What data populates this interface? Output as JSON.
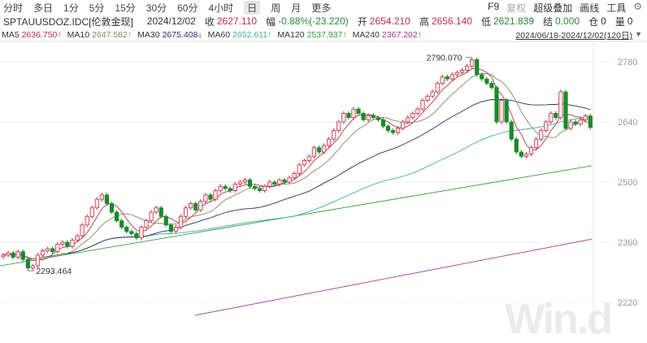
{
  "toolbar": {
    "periods": [
      "分时",
      "多日",
      "1分",
      "5分",
      "15分",
      "30分",
      "60分",
      "4小时",
      "日",
      "周",
      "月",
      "更多"
    ],
    "selected": "日",
    "right": [
      "F9",
      "复权",
      "超级叠加",
      "画线",
      "工具"
    ],
    "gear_icon": "gear-icon"
  },
  "quote": {
    "symbol": "SPTAUUSDOZ.IDC[伦敦金现]",
    "date": "2024/12/02",
    "close_label": "收",
    "close": "2627.110",
    "chg_label": "幅",
    "chg": "-0.88%(-23.220)",
    "open_label": "开",
    "open": "2654.210",
    "high_label": "高",
    "high": "2656.140",
    "low_label": "低",
    "low": "2621.839",
    "settle_label": "结",
    "settle": "0.000",
    "oi_label": "仓",
    "oi": "0",
    "vol_label": "量",
    "vol": "0"
  },
  "ma": [
    {
      "name": "MA5",
      "value": "2636.750↑",
      "color": "#c0304a"
    },
    {
      "name": "MA10",
      "value": "2647.582↑",
      "color": "#888866"
    },
    {
      "name": "MA30",
      "value": "2675.408↓",
      "color": "#2a2f6a"
    },
    {
      "name": "MA60",
      "value": "2652.611↑",
      "color": "#40b0a0"
    },
    {
      "name": "MA120",
      "value": "2537.937↑",
      "color": "#3a9a40"
    },
    {
      "name": "MA240",
      "value": "2367.202↑",
      "color": "#9a3a9a"
    }
  ],
  "range": "2024/06/18-2024/12/02(120日)",
  "watermark": "Win.d",
  "chart_data": {
    "type": "candlestick",
    "ylim": [
      2180,
      2820
    ],
    "yticks": [
      2220,
      2360,
      2500,
      2640,
      2780
    ],
    "grid": true,
    "annotations": [
      {
        "text": "2790.070",
        "value": 2790.07,
        "index": 95
      },
      {
        "text": "2293.464",
        "value": 2293.464,
        "index": 5
      }
    ],
    "closes": [
      2330,
      2335,
      2325,
      2338,
      2320,
      2300,
      2305,
      2330,
      2340,
      2345,
      2338,
      2355,
      2360,
      2350,
      2365,
      2375,
      2400,
      2420,
      2440,
      2460,
      2470,
      2450,
      2430,
      2410,
      2395,
      2385,
      2380,
      2370,
      2395,
      2410,
      2430,
      2440,
      2420,
      2400,
      2385,
      2395,
      2420,
      2440,
      2450,
      2435,
      2455,
      2470,
      2460,
      2480,
      2490,
      2485,
      2480,
      2495,
      2500,
      2505,
      2490,
      2485,
      2480,
      2490,
      2500,
      2495,
      2505,
      2500,
      2510,
      2520,
      2540,
      2550,
      2560,
      2580,
      2570,
      2585,
      2600,
      2620,
      2640,
      2660,
      2650,
      2670,
      2660,
      2645,
      2655,
      2650,
      2645,
      2630,
      2620,
      2615,
      2625,
      2640,
      2650,
      2660,
      2670,
      2690,
      2700,
      2710,
      2730,
      2745,
      2740,
      2750,
      2755,
      2760,
      2770,
      2785,
      2750,
      2740,
      2730,
      2720,
      2640,
      2690,
      2640,
      2600,
      2570,
      2560,
      2565,
      2580,
      2600,
      2620,
      2640,
      2660,
      2650,
      2710,
      2625,
      2640,
      2635,
      2645,
      2654,
      2627
    ],
    "ma120_range": [
      2305,
      2537.937
    ],
    "ma240_range": [
      2190,
      2367.202
    ]
  }
}
